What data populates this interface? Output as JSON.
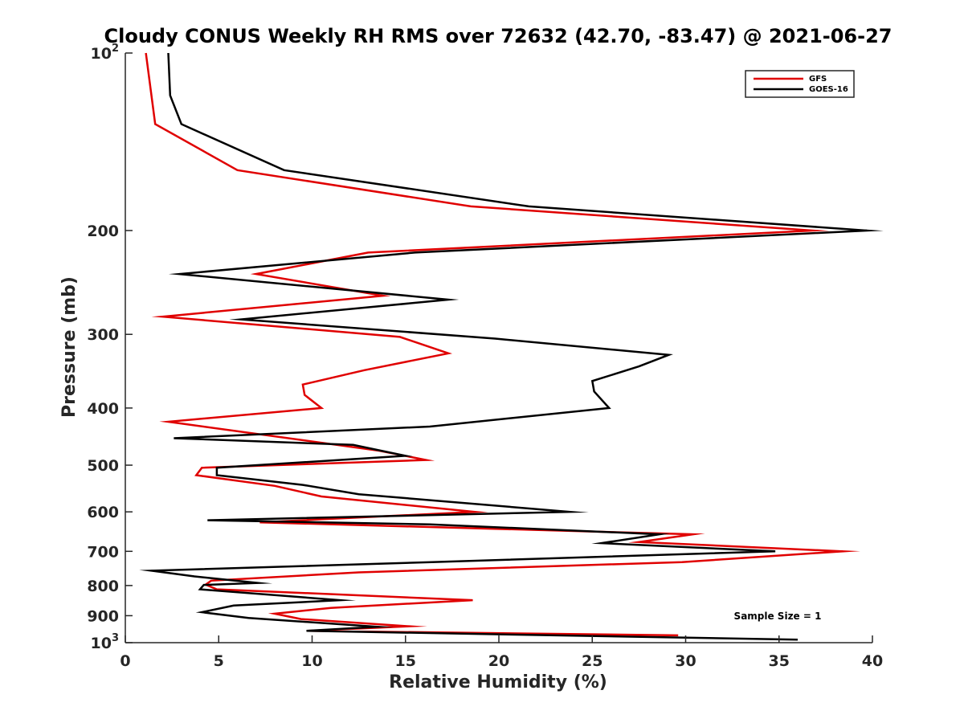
{
  "chart_data": {
    "type": "line",
    "title": "Cloudy CONUS Weekly RH RMS over 72632 (42.70, -83.47) @ 2021-06-27",
    "xlabel": "Relative Humidity (%)",
    "ylabel": "Pressure (mb)",
    "xlim": [
      0,
      40
    ],
    "ylim": [
      100,
      1000
    ],
    "y_scale": "log",
    "y_reversed": true,
    "x_ticks": [
      0,
      5,
      10,
      15,
      20,
      25,
      30,
      35,
      40
    ],
    "y_ticks": [
      {
        "value": 100,
        "base": "10",
        "exp": "2"
      },
      {
        "value": 200,
        "label": "200"
      },
      {
        "value": 300,
        "label": "300"
      },
      {
        "value": 400,
        "label": "400"
      },
      {
        "value": 500,
        "label": "500"
      },
      {
        "value": 600,
        "label": "600"
      },
      {
        "value": 700,
        "label": "700"
      },
      {
        "value": 800,
        "label": "800"
      },
      {
        "value": 900,
        "label": "900"
      },
      {
        "value": 1000,
        "base": "10",
        "exp": "3"
      }
    ],
    "grid": false,
    "legend_position": "top-right",
    "annotation": "Sample Size = 1",
    "series": [
      {
        "name": "GFS",
        "color": "#e00000",
        "points": [
          [
            1.1,
            100
          ],
          [
            1.6,
            132
          ],
          [
            6.0,
            158
          ],
          [
            18.5,
            182
          ],
          [
            36.8,
            200
          ],
          [
            13.0,
            218
          ],
          [
            7.0,
            237
          ],
          [
            13.8,
            258
          ],
          [
            2.0,
            280
          ],
          [
            14.7,
            303
          ],
          [
            17.3,
            323
          ],
          [
            12.8,
            345
          ],
          [
            9.5,
            365
          ],
          [
            9.6,
            380
          ],
          [
            10.5,
            400
          ],
          [
            2.3,
            422
          ],
          [
            13.5,
            472
          ],
          [
            16.1,
            490
          ],
          [
            4.1,
            505
          ],
          [
            3.8,
            520
          ],
          [
            8.0,
            542
          ],
          [
            10.5,
            565
          ],
          [
            18.7,
            600
          ],
          [
            7.2,
            625
          ],
          [
            30.4,
            655
          ],
          [
            27.5,
            675
          ],
          [
            38.4,
            700
          ],
          [
            29.8,
            730
          ],
          [
            12.5,
            760
          ],
          [
            4.6,
            785
          ],
          [
            4.3,
            797
          ],
          [
            4.9,
            812
          ],
          [
            18.6,
            847
          ],
          [
            11.0,
            873
          ],
          [
            8.0,
            893
          ],
          [
            9.4,
            912
          ],
          [
            15.2,
            938
          ],
          [
            9.8,
            955
          ],
          [
            29.6,
            972
          ]
        ]
      },
      {
        "name": "GOES-16",
        "color": "#000000",
        "points": [
          [
            2.3,
            100
          ],
          [
            2.4,
            118
          ],
          [
            3.0,
            132
          ],
          [
            8.5,
            158
          ],
          [
            21.6,
            182
          ],
          [
            39.7,
            200
          ],
          [
            15.5,
            218
          ],
          [
            2.9,
            237
          ],
          [
            17.3,
            262
          ],
          [
            6.2,
            283
          ],
          [
            19.8,
            305
          ],
          [
            29.1,
            325
          ],
          [
            27.5,
            340
          ],
          [
            25.0,
            360
          ],
          [
            25.1,
            375
          ],
          [
            25.9,
            400
          ],
          [
            16.3,
            430
          ],
          [
            2.6,
            450
          ],
          [
            12.2,
            462
          ],
          [
            15.0,
            482
          ],
          [
            4.9,
            505
          ],
          [
            4.9,
            520
          ],
          [
            9.5,
            540
          ],
          [
            12.5,
            560
          ],
          [
            23.8,
            600
          ],
          [
            4.4,
            620
          ],
          [
            16.3,
            630
          ],
          [
            28.6,
            655
          ],
          [
            25.5,
            678
          ],
          [
            34.8,
            700
          ],
          [
            16.4,
            730
          ],
          [
            1.4,
            755
          ],
          [
            3.7,
            772
          ],
          [
            7.1,
            792
          ],
          [
            4.2,
            798
          ],
          [
            4.0,
            812
          ],
          [
            11.5,
            847
          ],
          [
            5.8,
            865
          ],
          [
            4.1,
            888
          ],
          [
            6.6,
            908
          ],
          [
            13.5,
            940
          ],
          [
            9.7,
            955
          ],
          [
            36.0,
            988
          ]
        ]
      }
    ]
  }
}
